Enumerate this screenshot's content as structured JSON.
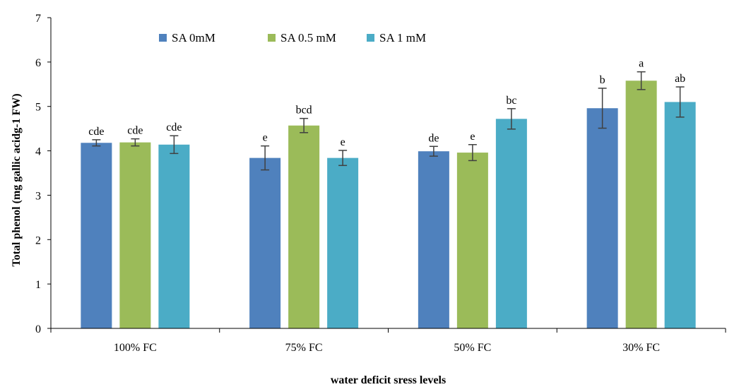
{
  "chart_data": {
    "type": "bar",
    "categories": [
      "100% FC",
      "75% FC",
      "50% FC",
      "30% FC"
    ],
    "series": [
      {
        "name": "SA 0mM",
        "color": "#4f81bd",
        "values": [
          4.18,
          3.84,
          3.99,
          4.96
        ],
        "errors": [
          0.07,
          0.27,
          0.11,
          0.45
        ],
        "labels": [
          "cde",
          "e",
          "de",
          "b"
        ]
      },
      {
        "name": "SA 0.5 mM",
        "color": "#9bbb59",
        "values": [
          4.19,
          4.57,
          3.96,
          5.58
        ],
        "errors": [
          0.08,
          0.16,
          0.18,
          0.2
        ],
        "labels": [
          "cde",
          "bcd",
          "e",
          "a"
        ]
      },
      {
        "name": "SA 1 mM",
        "color": "#4bacc6",
        "values": [
          4.14,
          3.84,
          4.72,
          5.1
        ],
        "errors": [
          0.2,
          0.17,
          0.23,
          0.34
        ],
        "labels": [
          "cde",
          "e",
          "bc",
          "ab"
        ]
      }
    ],
    "xlabel": "water deficit sress levels",
    "ylabel": "Total phenol (mg gallic acidg-1 FW)",
    "ylim": [
      0,
      7
    ],
    "yticks": [
      "0",
      "1",
      "2",
      "3",
      "4",
      "5",
      "6",
      "7"
    ],
    "grid": false,
    "legend": "top-left"
  }
}
